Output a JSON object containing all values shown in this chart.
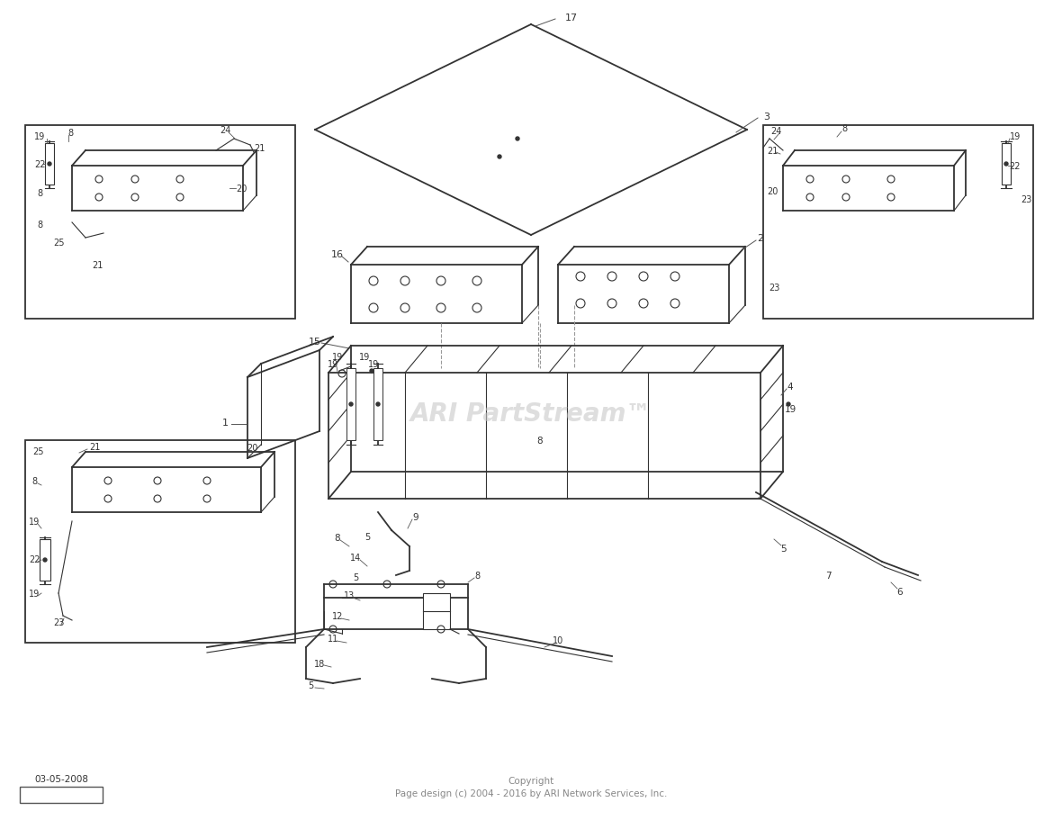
{
  "bg_color": "#ffffff",
  "line_color": "#333333",
  "watermark_text": "ARI PartStream",
  "watermark_tm": "™",
  "watermark_color": "#c8c8c8",
  "watermark_alpha": 0.6,
  "copyright_line1": "Copyright",
  "copyright_line2": "Page design (c) 2004 - 2016 by ARI Network Services, Inc.",
  "date_label": "03-05-2008",
  "fig_width": 11.8,
  "fig_height": 9.12,
  "dpi": 100
}
